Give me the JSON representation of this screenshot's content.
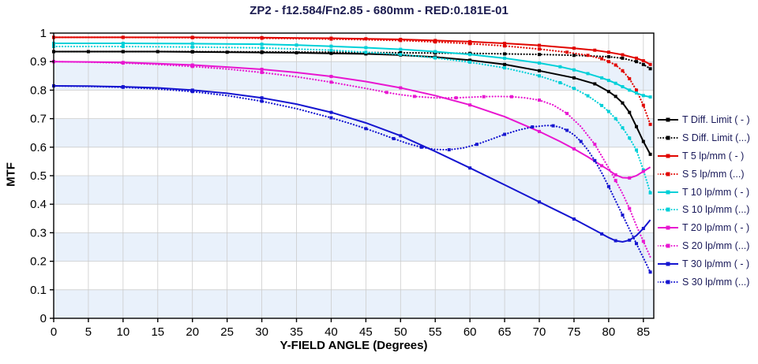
{
  "chart_data": {
    "type": "line",
    "title": "ZP2 - f12.584/Fn2.85 - 680mm - RED:0.181E-01",
    "xlabel": "Y-FIELD ANGLE (Degrees)",
    "ylabel": "MTF",
    "xlim": [
      0,
      86.5
    ],
    "ylim": [
      0,
      1
    ],
    "xticks": [
      "0",
      "5",
      "10",
      "15",
      "20",
      "25",
      "30",
      "35",
      "40",
      "45",
      "50",
      "55",
      "60",
      "65",
      "70",
      "75",
      "80",
      "85"
    ],
    "yticks": [
      "0",
      "0.1",
      "0.2",
      "0.3",
      "0.4",
      "0.5",
      "0.6",
      "0.7",
      "0.8",
      "0.9",
      "1"
    ],
    "grid": true,
    "legend_position": "right",
    "stripe_color": "#e9f1fb",
    "grid_color": "#cccccc",
    "title_color": "#1c1c50",
    "legend_text_color": "#1a1a5a",
    "series": [
      {
        "id": "t-diff",
        "name": "T Diff. Limit ( - )",
        "color": "#000000",
        "style": "solid",
        "marker": "square",
        "points": [
          [
            0,
            0.935
          ],
          [
            5,
            0.935
          ],
          [
            10,
            0.935
          ],
          [
            15,
            0.935
          ],
          [
            20,
            0.934
          ],
          [
            25,
            0.933
          ],
          [
            30,
            0.932
          ],
          [
            35,
            0.931
          ],
          [
            40,
            0.929
          ],
          [
            45,
            0.927
          ],
          [
            50,
            0.923
          ],
          [
            55,
            0.916
          ],
          [
            60,
            0.905
          ],
          [
            65,
            0.89
          ],
          [
            70,
            0.868
          ],
          [
            75,
            0.843
          ],
          [
            78,
            0.822
          ],
          [
            80,
            0.795
          ],
          [
            81,
            0.778
          ],
          [
            82,
            0.755
          ],
          [
            83,
            0.722
          ],
          [
            84,
            0.672
          ],
          [
            85,
            0.62
          ],
          [
            86,
            0.575
          ]
        ]
      },
      {
        "id": "s-diff",
        "name": "S Diff. Limit (...)",
        "color": "#000000",
        "style": "dotted",
        "marker": "square",
        "points": [
          [
            0,
            0.935
          ],
          [
            10,
            0.935
          ],
          [
            20,
            0.935
          ],
          [
            30,
            0.934
          ],
          [
            40,
            0.933
          ],
          [
            50,
            0.931
          ],
          [
            55,
            0.93
          ],
          [
            60,
            0.929
          ],
          [
            65,
            0.927
          ],
          [
            70,
            0.925
          ],
          [
            75,
            0.922
          ],
          [
            80,
            0.917
          ],
          [
            82,
            0.912
          ],
          [
            84,
            0.9
          ],
          [
            85,
            0.89
          ],
          [
            86,
            0.875
          ]
        ]
      },
      {
        "id": "t5",
        "name": "T 5 lp/mm ( - )",
        "color": "#e10600",
        "style": "solid",
        "marker": "square",
        "points": [
          [
            0,
            0.985
          ],
          [
            10,
            0.985
          ],
          [
            20,
            0.985
          ],
          [
            30,
            0.984
          ],
          [
            40,
            0.982
          ],
          [
            45,
            0.98
          ],
          [
            50,
            0.978
          ],
          [
            55,
            0.974
          ],
          [
            60,
            0.97
          ],
          [
            65,
            0.964
          ],
          [
            70,
            0.957
          ],
          [
            75,
            0.947
          ],
          [
            78,
            0.94
          ],
          [
            80,
            0.933
          ],
          [
            82,
            0.924
          ],
          [
            84,
            0.912
          ],
          [
            85,
            0.903
          ],
          [
            86,
            0.89
          ]
        ]
      },
      {
        "id": "s5",
        "name": "S 5 lp/mm (...)",
        "color": "#e10600",
        "style": "dotted",
        "marker": "square",
        "points": [
          [
            0,
            0.985
          ],
          [
            10,
            0.985
          ],
          [
            20,
            0.984
          ],
          [
            30,
            0.982
          ],
          [
            40,
            0.979
          ],
          [
            50,
            0.974
          ],
          [
            55,
            0.969
          ],
          [
            60,
            0.963
          ],
          [
            65,
            0.955
          ],
          [
            70,
            0.944
          ],
          [
            74,
            0.933
          ],
          [
            77,
            0.922
          ],
          [
            79,
            0.91
          ],
          [
            80,
            0.9
          ],
          [
            81,
            0.888
          ],
          [
            82,
            0.868
          ],
          [
            83,
            0.84
          ],
          [
            84,
            0.8
          ],
          [
            85,
            0.747
          ],
          [
            86,
            0.68
          ]
        ]
      },
      {
        "id": "t10",
        "name": "T 10 lp/mm ( - )",
        "color": "#00d0d8",
        "style": "solid",
        "marker": "square",
        "points": [
          [
            0,
            0.964
          ],
          [
            10,
            0.964
          ],
          [
            20,
            0.963
          ],
          [
            30,
            0.961
          ],
          [
            35,
            0.958
          ],
          [
            40,
            0.954
          ],
          [
            45,
            0.949
          ],
          [
            50,
            0.943
          ],
          [
            55,
            0.935
          ],
          [
            60,
            0.925
          ],
          [
            65,
            0.912
          ],
          [
            70,
            0.895
          ],
          [
            73,
            0.882
          ],
          [
            75,
            0.871
          ],
          [
            77,
            0.858
          ],
          [
            79,
            0.843
          ],
          [
            80,
            0.834
          ],
          [
            81,
            0.824
          ],
          [
            82,
            0.812
          ],
          [
            83,
            0.8
          ],
          [
            84,
            0.79
          ],
          [
            85,
            0.781
          ],
          [
            86,
            0.776
          ]
        ]
      },
      {
        "id": "s10",
        "name": "S 10 lp/mm (...)",
        "color": "#00d0d8",
        "style": "dotted",
        "marker": "square",
        "points": [
          [
            0,
            0.953
          ],
          [
            10,
            0.953
          ],
          [
            20,
            0.951
          ],
          [
            30,
            0.948
          ],
          [
            40,
            0.94
          ],
          [
            45,
            0.933
          ],
          [
            50,
            0.925
          ],
          [
            55,
            0.913
          ],
          [
            60,
            0.898
          ],
          [
            65,
            0.878
          ],
          [
            70,
            0.85
          ],
          [
            73,
            0.826
          ],
          [
            75,
            0.806
          ],
          [
            77,
            0.78
          ],
          [
            79,
            0.746
          ],
          [
            80,
            0.725
          ],
          [
            81,
            0.7
          ],
          [
            82,
            0.668
          ],
          [
            83,
            0.632
          ],
          [
            84,
            0.59
          ],
          [
            85,
            0.52
          ],
          [
            86,
            0.44
          ]
        ]
      },
      {
        "id": "t20",
        "name": "T 20 lp/mm ( - )",
        "color": "#e816d0",
        "style": "solid",
        "marker": "square",
        "points": [
          [
            0,
            0.9
          ],
          [
            5,
            0.899
          ],
          [
            10,
            0.897
          ],
          [
            15,
            0.893
          ],
          [
            20,
            0.888
          ],
          [
            25,
            0.881
          ],
          [
            30,
            0.873
          ],
          [
            35,
            0.862
          ],
          [
            40,
            0.848
          ],
          [
            45,
            0.83
          ],
          [
            50,
            0.808
          ],
          [
            55,
            0.781
          ],
          [
            60,
            0.748
          ],
          [
            65,
            0.707
          ],
          [
            70,
            0.655
          ],
          [
            73,
            0.62
          ],
          [
            75,
            0.594
          ],
          [
            77,
            0.566
          ],
          [
            79,
            0.535
          ],
          [
            80,
            0.52
          ],
          [
            81,
            0.503
          ],
          [
            82,
            0.493
          ],
          [
            83,
            0.492
          ],
          [
            84,
            0.5
          ],
          [
            85,
            0.515
          ],
          [
            86,
            0.53
          ]
        ]
      },
      {
        "id": "s20",
        "name": "S 20 lp/mm (...)",
        "color": "#e816d0",
        "style": "dotted",
        "marker": "square",
        "points": [
          [
            0,
            0.9
          ],
          [
            5,
            0.898
          ],
          [
            10,
            0.895
          ],
          [
            15,
            0.89
          ],
          [
            20,
            0.883
          ],
          [
            25,
            0.874
          ],
          [
            30,
            0.862
          ],
          [
            35,
            0.847
          ],
          [
            40,
            0.828
          ],
          [
            45,
            0.806
          ],
          [
            48,
            0.792
          ],
          [
            50,
            0.784
          ],
          [
            52,
            0.778
          ],
          [
            55,
            0.773
          ],
          [
            58,
            0.773
          ],
          [
            60,
            0.775
          ],
          [
            62,
            0.777
          ],
          [
            64,
            0.778
          ],
          [
            66,
            0.777
          ],
          [
            68,
            0.773
          ],
          [
            70,
            0.765
          ],
          [
            72,
            0.748
          ],
          [
            74,
            0.718
          ],
          [
            76,
            0.672
          ],
          [
            78,
            0.61
          ],
          [
            80,
            0.527
          ],
          [
            81,
            0.483
          ],
          [
            82,
            0.437
          ],
          [
            83,
            0.385
          ],
          [
            84,
            0.325
          ],
          [
            85,
            0.27
          ],
          [
            86,
            0.215
          ]
        ]
      },
      {
        "id": "t30",
        "name": "T 30 lp/mm ( - )",
        "color": "#1515d0",
        "style": "solid",
        "marker": "square",
        "points": [
          [
            0,
            0.815
          ],
          [
            5,
            0.814
          ],
          [
            10,
            0.812
          ],
          [
            15,
            0.808
          ],
          [
            20,
            0.8
          ],
          [
            25,
            0.789
          ],
          [
            30,
            0.773
          ],
          [
            35,
            0.751
          ],
          [
            40,
            0.722
          ],
          [
            45,
            0.685
          ],
          [
            50,
            0.64
          ],
          [
            55,
            0.585
          ],
          [
            60,
            0.527
          ],
          [
            65,
            0.468
          ],
          [
            70,
            0.408
          ],
          [
            73,
            0.372
          ],
          [
            75,
            0.348
          ],
          [
            77,
            0.322
          ],
          [
            79,
            0.296
          ],
          [
            80,
            0.283
          ],
          [
            81,
            0.272
          ],
          [
            82,
            0.268
          ],
          [
            83,
            0.274
          ],
          [
            84,
            0.29
          ],
          [
            85,
            0.315
          ],
          [
            86,
            0.345
          ]
        ]
      },
      {
        "id": "s30",
        "name": "S 30 lp/mm (...)",
        "color": "#1515d0",
        "style": "dotted",
        "marker": "square",
        "points": [
          [
            0,
            0.815
          ],
          [
            5,
            0.813
          ],
          [
            10,
            0.81
          ],
          [
            15,
            0.804
          ],
          [
            20,
            0.795
          ],
          [
            25,
            0.781
          ],
          [
            30,
            0.761
          ],
          [
            35,
            0.735
          ],
          [
            40,
            0.703
          ],
          [
            43,
            0.681
          ],
          [
            45,
            0.665
          ],
          [
            47,
            0.648
          ],
          [
            49,
            0.63
          ],
          [
            51,
            0.613
          ],
          [
            53,
            0.6
          ],
          [
            55,
            0.592
          ],
          [
            57,
            0.591
          ],
          [
            59,
            0.597
          ],
          [
            61,
            0.61
          ],
          [
            63,
            0.627
          ],
          [
            65,
            0.645
          ],
          [
            67,
            0.66
          ],
          [
            69,
            0.671
          ],
          [
            71,
            0.676
          ],
          [
            72,
            0.675
          ],
          [
            73,
            0.67
          ],
          [
            74,
            0.659
          ],
          [
            75,
            0.643
          ],
          [
            76,
            0.62
          ],
          [
            77,
            0.59
          ],
          [
            78,
            0.553
          ],
          [
            79,
            0.51
          ],
          [
            80,
            0.462
          ],
          [
            81,
            0.412
          ],
          [
            82,
            0.362
          ],
          [
            83,
            0.312
          ],
          [
            84,
            0.262
          ],
          [
            85,
            0.212
          ],
          [
            86,
            0.162
          ]
        ]
      }
    ]
  }
}
